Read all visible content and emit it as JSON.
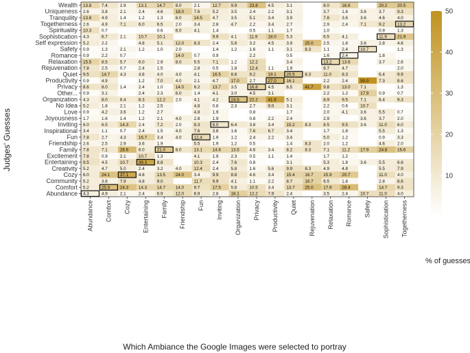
{
  "chart_data": {
    "type": "heatmap",
    "title": "",
    "xlabel": "Which Ambiance the Google Images were selected to portray",
    "ylabel": "Judges' Guesses",
    "legend_title": "% of guesses",
    "legend_ticks": [
      10,
      20,
      30,
      40,
      50
    ],
    "value_range": [
      0,
      50
    ],
    "color_low": "#ffffff",
    "color_high": "#c0921f",
    "x_categories": [
      "Abundance",
      "Comfort",
      "Cozy",
      "Entertaining",
      "Family",
      "Friendship",
      "Fun",
      "Inviting",
      "Organization",
      "Privacy",
      "Productivity",
      "Quiet",
      "Rejuvenation",
      "Relaxation",
      "Romance",
      "Safety",
      "Sophistication",
      "Togetherness"
    ],
    "y_categories": [
      "Wealth",
      "Uniqueness",
      "Tranquility",
      "Togetherness",
      "Spirituality",
      "Sophistication",
      "Self expression",
      "Safety",
      "Romance",
      "Relaxation",
      "Rejuvenation",
      "Quiet",
      "Productivity",
      "Privacy",
      "Other...",
      "Organization",
      "No Idea",
      "Love",
      "Joyousness",
      "Inviting",
      "Inspirational",
      "Fun",
      "Friendship",
      "Family",
      "Excitement",
      "Entertaining",
      "Creativity",
      "Cozy",
      "Community",
      "Comfort",
      "Abundance"
    ],
    "values": [
      [
        "13.8",
        "7.4",
        "2.9",
        "13.1",
        "14.7",
        "8.0",
        "2.1",
        "12.7",
        "9.9",
        "23.8",
        "4.5",
        "3.1",
        "",
        "8.0",
        "16.6",
        "",
        "20.2",
        "20.5"
      ],
      [
        "2.6",
        "3.8",
        "2.1",
        "2.4",
        "4.6",
        "18.0",
        "7.6",
        "5.2",
        "3.5",
        "2.4",
        "2.2",
        "3.1",
        "",
        "3.7",
        "1.8",
        "3.6",
        "3.7",
        "9.3"
      ],
      [
        "13.8",
        "4.9",
        "1.4",
        "1.2",
        "1.3",
        "6.0",
        "14.5",
        "4.7",
        "3.5",
        "5.1",
        "3.4",
        "3.9",
        "",
        "7.8",
        "3.6",
        "3.6",
        "4.6",
        "4.0"
      ],
      [
        "2.6",
        "4.9",
        "7.1",
        "6.0",
        "6.5",
        "2.0",
        "3.4",
        "2.8",
        "4.7",
        "2.2",
        "3.4",
        "2.7",
        "",
        "2.9",
        "2.4",
        "7.1",
        "9.2",
        "13.2"
      ],
      [
        "10.3",
        "0.7",
        "",
        "",
        "0.6",
        "6.0",
        "4.1",
        "1.4",
        "",
        "0.5",
        "1.1",
        "1.7",
        "",
        "1.0",
        "",
        "",
        "0.9",
        "1.3"
      ],
      [
        "4.3",
        "6.7",
        "2.1",
        "10.7",
        "10.1",
        "",
        "",
        "9.9",
        "4.1",
        "11.9",
        "18.0",
        "5.3",
        "",
        "6.5",
        "4.1",
        "",
        "11.9",
        "21.9"
      ],
      [
        "5.2",
        "2.2",
        "",
        "4.8",
        "5.1",
        "12.0",
        "8.3",
        "2.4",
        "5.8",
        "3.2",
        "4.5",
        "3.9",
        "25.0",
        "2.5",
        "1.8",
        "3.6",
        "2.8",
        "4.6"
      ],
      [
        "0.9",
        "1.3",
        "2.1",
        "1.2",
        "1.0",
        "2.0",
        "",
        "1.4",
        "1.2",
        "1.6",
        "1.1",
        "3.1",
        "8.3",
        "1.1",
        "2.4",
        "10.7",
        "",
        "1.3"
      ],
      [
        "0.9",
        "2.2",
        "0.7",
        "",
        "",
        "14.0",
        "0.7",
        "0.9",
        "",
        "2.2",
        "",
        "0.5",
        "",
        "1.6",
        "2.4",
        "",
        "1.8",
        ""
      ],
      [
        "15.5",
        "8.5",
        "5.7",
        "6.0",
        "2.9",
        "8.0",
        "5.5",
        "7.1",
        "1.2",
        "12.2",
        "",
        "3.4",
        "",
        "13.2",
        "13.6",
        "",
        "3.7",
        "2.6"
      ],
      [
        "7.8",
        "2.5",
        "0.7",
        "2.4",
        "1.5",
        "",
        "2.8",
        "0.5",
        "1.8",
        "12.4",
        "1.1",
        "1.9",
        "",
        "6.7",
        "4.7",
        "",
        "",
        "2.0"
      ],
      [
        "9.5",
        "14.7",
        "4.3",
        "4.8",
        "4.0",
        "4.0",
        "4.1",
        "16.5",
        "8.8",
        "9.2",
        "19.1",
        "20.5",
        "8.3",
        "11.0",
        "8.3",
        "",
        "6.4",
        "9.9"
      ],
      [
        "0.9",
        "4.9",
        "",
        "1.2",
        "7.0",
        "4.0",
        "2.1",
        "4.7",
        "17.0",
        "2.7",
        "27.0",
        "16.1",
        "",
        "2.2",
        "2.4",
        "50.0",
        "7.3",
        "8.6"
      ],
      [
        "8.6",
        "8.0",
        "1.4",
        "2.4",
        "1.0",
        "14.0",
        "6.2",
        "13.7",
        "3.5",
        "16.8",
        "4.5",
        "6.5",
        "41.7",
        "9.8",
        "13.0",
        "7.1",
        "",
        "1.3"
      ],
      [
        "0.9",
        "3.1",
        "",
        "2.4",
        "2.3",
        "6.0",
        "1.4",
        "4.1",
        "3.0",
        "4.5",
        "3.1",
        "",
        "",
        "2.2",
        "1.2",
        "17.9",
        "0.9",
        "0.7"
      ],
      [
        "4.3",
        "8.0",
        "6.4",
        "8.3",
        "12.2",
        "2.0",
        "4.1",
        "4.2",
        "24.6",
        "22.2",
        "41.6",
        "5.1",
        "",
        "8.9",
        "9.5",
        "7.1",
        "6.4",
        "9.3"
      ],
      [
        "5.2",
        "1.8",
        "2.1",
        "1.2",
        "2.5",
        "",
        "4.8",
        "0.8",
        "2.3",
        "2.7",
        "9.0",
        "3.1",
        "",
        "2.2",
        "0.6",
        "10.7",
        "",
        ""
      ],
      [
        "0.9",
        "4.2",
        "3.6",
        "1.2",
        "2.7",
        "",
        "4.8",
        "1.9",
        "",
        "0.8",
        "",
        "1.7",
        "",
        "2.0",
        "4.1",
        "3.6",
        "5.5",
        "0.7"
      ],
      [
        "1.7",
        "1.6",
        "1.4",
        "1.2",
        "2.1",
        "4.0",
        "2.8",
        "1.9",
        "",
        "0.8",
        "2.2",
        "2.4",
        "",
        "2.9",
        "",
        "3.6",
        "3.7",
        "2.0"
      ],
      [
        "6.0",
        "6.5",
        "14.3",
        "2.4",
        "7.2",
        "2.0",
        "8.3",
        "8.0",
        "6.4",
        "3.8",
        "3.4",
        "15.2",
        "8.3",
        "8.5",
        "9.5",
        "3.6",
        "11.0",
        "6.0"
      ],
      [
        "3.4",
        "1.1",
        "0.7",
        "2.4",
        "1.5",
        "4.0",
        "7.6",
        "3.8",
        "1.6",
        "7.6",
        "6.7",
        "3.4",
        "",
        "1.7",
        "1.8",
        "",
        "5.5",
        "1.3"
      ],
      [
        "7.8",
        "2.7",
        "4.3",
        "16.7",
        "3.4",
        "4.0",
        "12.4",
        "1.9",
        "1.2",
        "2.4",
        "2.2",
        "3.4",
        "",
        "5.0",
        "1.2",
        "",
        "0.9",
        "3.3"
      ],
      [
        "2.6",
        "2.5",
        "2.9",
        "3.6",
        "1.9",
        "",
        "5.5",
        "1.9",
        "1.2",
        "0.5",
        "",
        "1.4",
        "8.3",
        "2.0",
        "1.2",
        "",
        "4.6",
        "2.0"
      ],
      [
        "7.8",
        "7.1",
        "28.6",
        "6.0",
        "21.0",
        "8.0",
        "13.1",
        "14.6",
        "13.5",
        "4.6",
        "3.4",
        "8.2",
        "8.3",
        "7.1",
        "11.2",
        "17.9",
        "24.8",
        "16.6"
      ],
      [
        "7.8",
        "0.9",
        "2.1",
        "10.7",
        "1.3",
        "",
        "4.1",
        "1.9",
        "2.3",
        "0.5",
        "1.1",
        "1.4",
        "",
        "1.7",
        "1.2",
        "",
        "",
        ""
      ],
      [
        "9.5",
        "4.5",
        "10.7",
        "39.3",
        "8.8",
        "",
        "10.3",
        "2.4",
        "7.6",
        "0.8",
        "",
        "3.1",
        "",
        "5.3",
        "1.8",
        "3.6",
        "5.5",
        "6.6"
      ],
      [
        "5.2",
        "4.7",
        "5.0",
        "2.4",
        "3.2",
        "4.0",
        "12.4",
        "2.4",
        "5.8",
        "1.6",
        "5.6",
        "9.9",
        "8.3",
        "4.9",
        "4.8",
        "",
        "5.5",
        "7.9"
      ],
      [
        "6.0",
        "24.1",
        "37.1",
        "4.8",
        "13.5",
        "24.0",
        "3.4",
        "9.9",
        "8.8",
        "4.6",
        "3.4",
        "15.4",
        "16.7",
        "15.9",
        "20.7",
        "",
        "11.0",
        "4.0"
      ],
      [
        "5.2",
        "3.6",
        "7.9",
        "4.8",
        "9.0",
        "",
        "11.7",
        "9.9",
        "4.1",
        "1.1",
        "2.2",
        "8.7",
        "16.7",
        "6.5",
        "1.8",
        "",
        "2.8",
        "8.6"
      ],
      [
        "5.2",
        "25.9",
        "24.3",
        "14.3",
        "14.7",
        "14.0",
        "9.7",
        "17.5",
        "5.8",
        "10.5",
        "3.4",
        "13.7",
        "25.0",
        "17.9",
        "28.4",
        "",
        "14.7",
        "9.3"
      ],
      [
        "4.3",
        "4.9",
        "2.1",
        "2.4",
        "6.9",
        "12.0",
        "6.9",
        "2.8",
        "18.1",
        "12.2",
        "7.9",
        "2.4",
        "",
        "3.5",
        "2.4",
        "10.7",
        "11.0",
        "4.0"
      ]
    ],
    "highlighted_cells": [
      [
        "Abundance",
        "Abundance"
      ],
      [
        "Comfort",
        "Comfort"
      ],
      [
        "Cozy",
        "Cozy"
      ],
      [
        "Entertaining",
        "Entertaining"
      ],
      [
        "Family",
        "Family"
      ],
      [
        "Fun",
        "Fun"
      ],
      [
        "Inviting",
        "Inviting"
      ],
      [
        "Organization",
        "Organization"
      ],
      [
        "Privacy",
        "Privacy"
      ],
      [
        "Productivity",
        "Productivity"
      ],
      [
        "Quiet",
        "Quiet"
      ],
      [
        "Relaxation",
        "Relaxation"
      ],
      [
        "Romance",
        "Romance"
      ],
      [
        "Safety",
        "Safety"
      ],
      [
        "Sophistication",
        "Sophistication"
      ],
      [
        "Togetherness",
        "Togetherness"
      ]
    ]
  }
}
